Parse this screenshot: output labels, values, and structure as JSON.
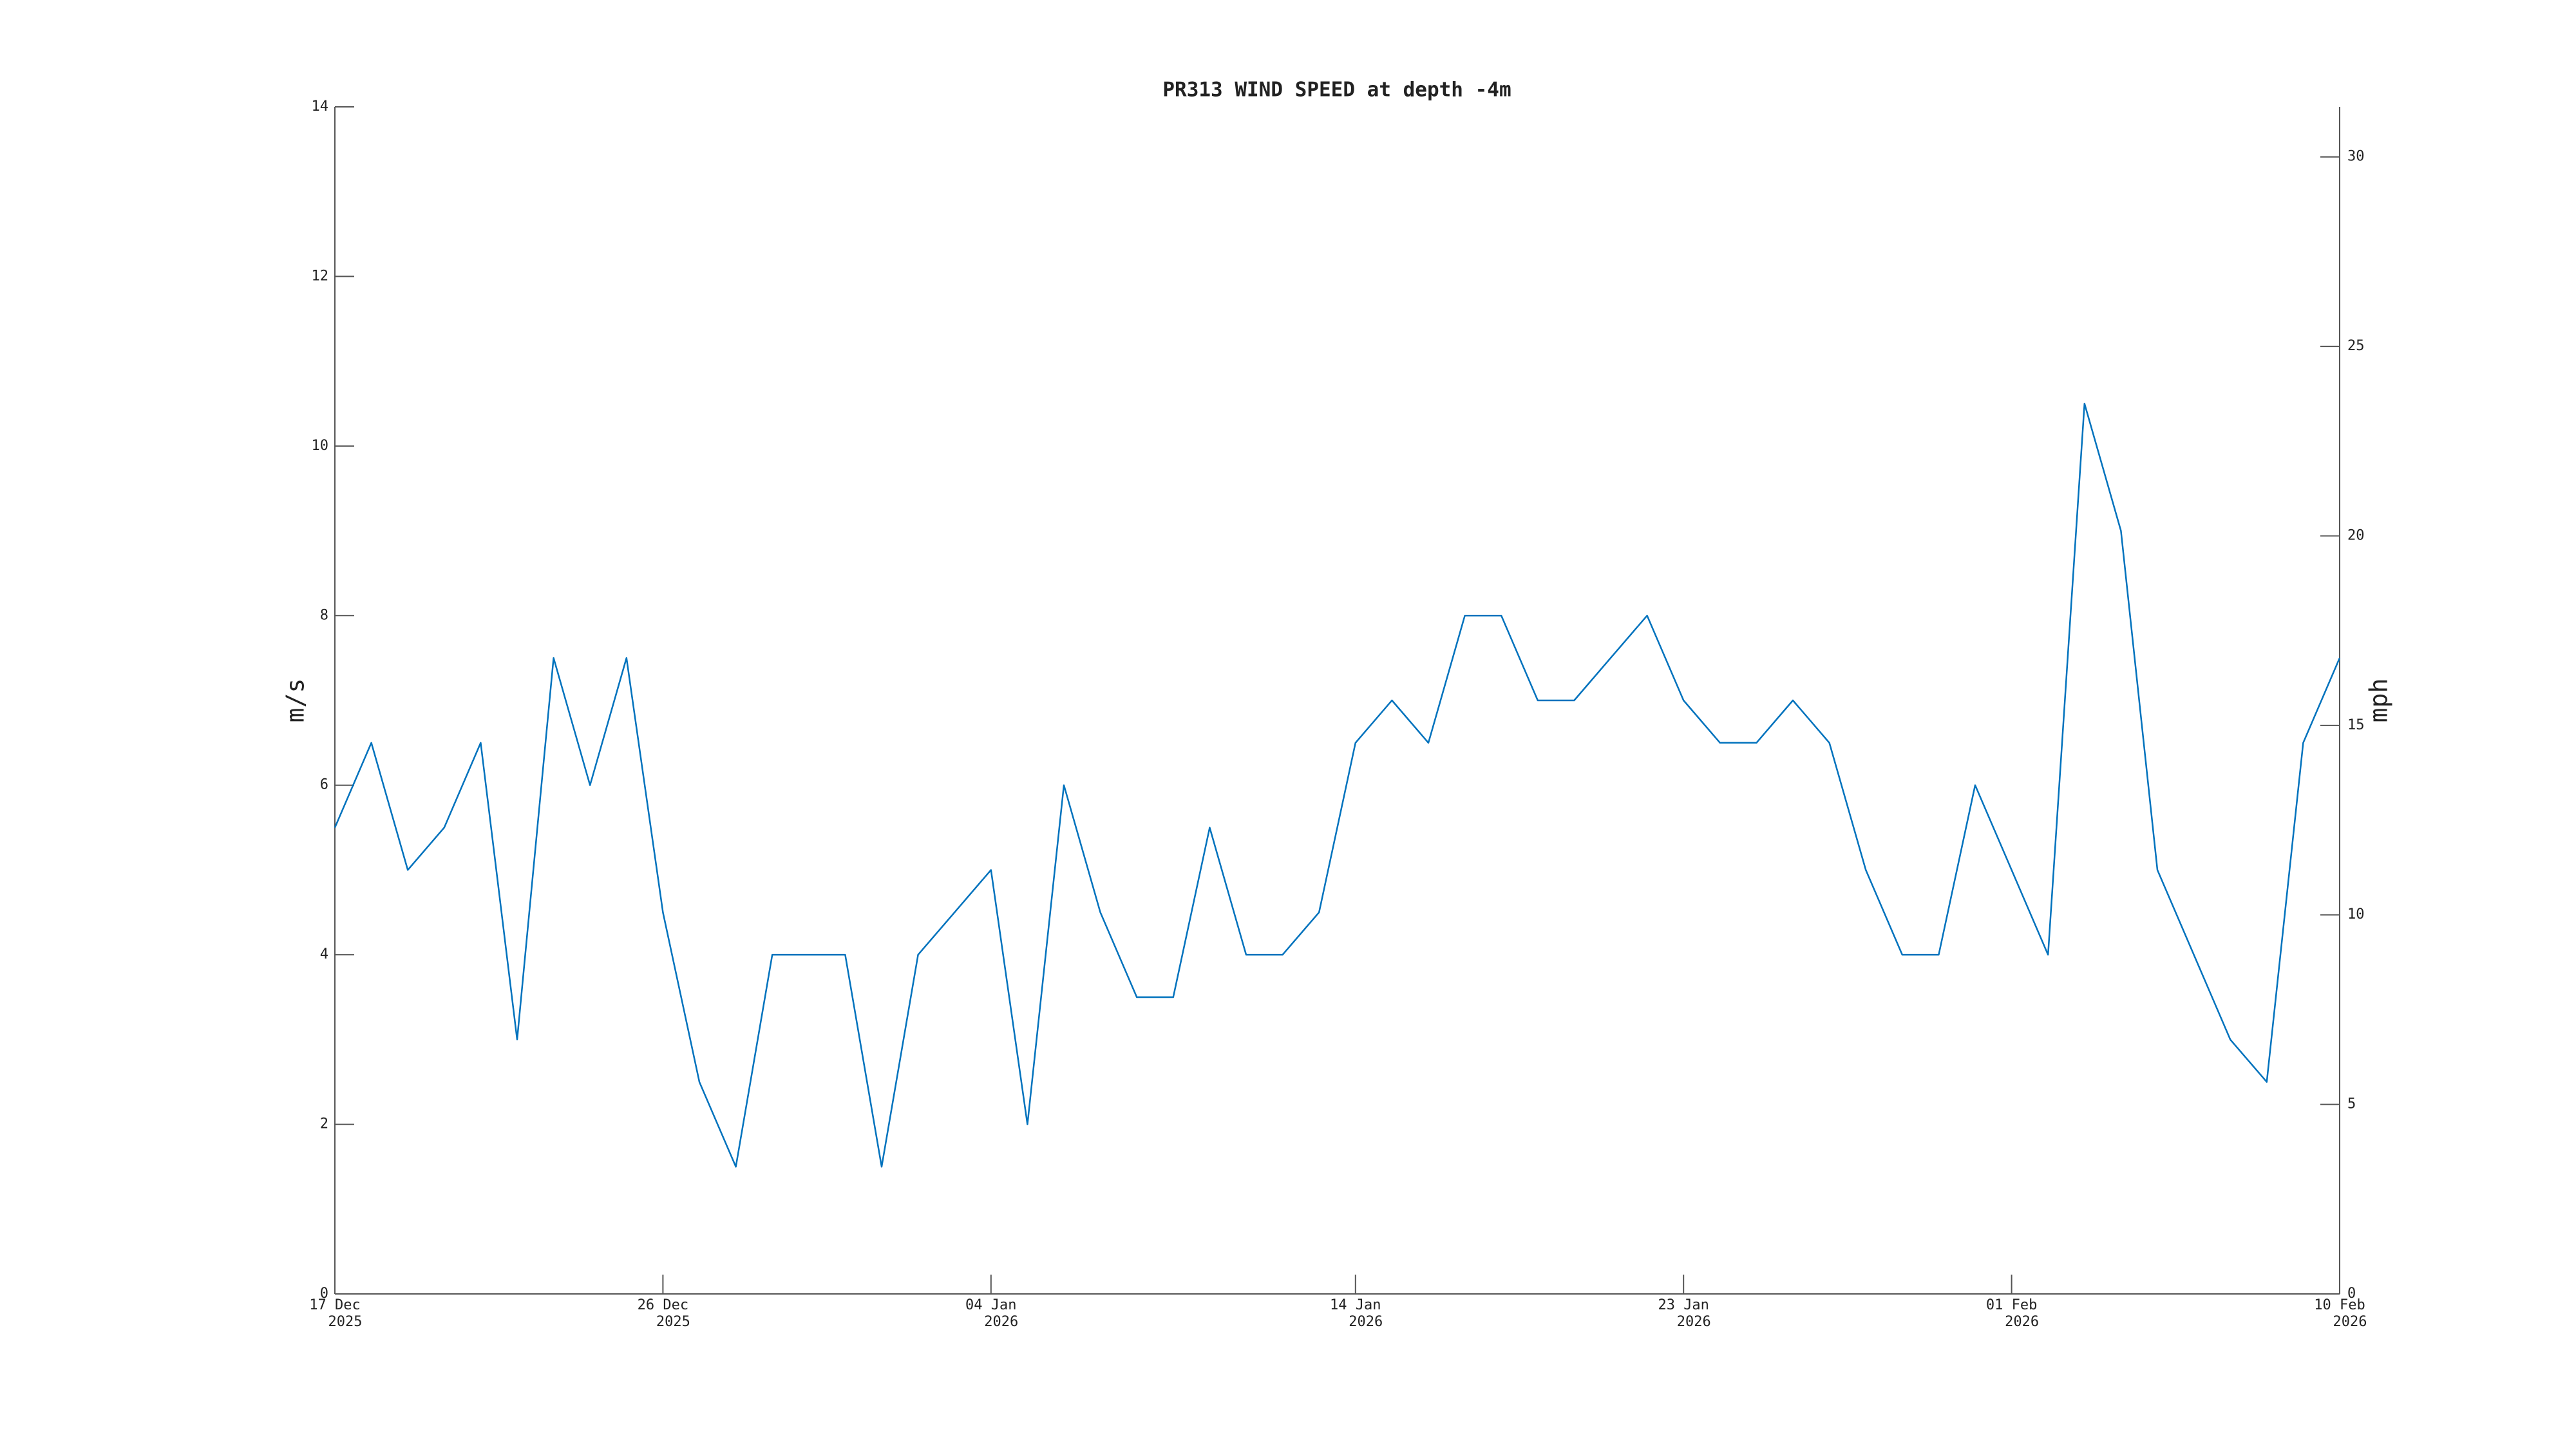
{
  "chart_data": {
    "type": "line",
    "title": "PR313 WIND SPEED at depth -4m",
    "y_label": "m/s",
    "y2_label": "mph",
    "x": [
      "2025-12-17",
      "2025-12-18",
      "2025-12-19",
      "2025-12-20",
      "2025-12-21",
      "2025-12-22",
      "2025-12-23",
      "2025-12-24",
      "2025-12-25",
      "2025-12-26",
      "2025-12-27",
      "2025-12-28",
      "2025-12-29",
      "2025-12-30",
      "2025-12-31",
      "2026-01-01",
      "2026-01-02",
      "2026-01-03",
      "2026-01-04",
      "2026-01-05",
      "2026-01-06",
      "2026-01-07",
      "2026-01-08",
      "2026-01-09",
      "2026-01-10",
      "2026-01-11",
      "2026-01-12",
      "2026-01-13",
      "2026-01-14",
      "2026-01-15",
      "2026-01-16",
      "2026-01-17",
      "2026-01-18",
      "2026-01-19",
      "2026-01-20",
      "2026-01-21",
      "2026-01-22",
      "2026-01-23",
      "2026-01-24",
      "2026-01-25",
      "2026-01-26",
      "2026-01-27",
      "2026-01-28",
      "2026-01-29",
      "2026-01-30",
      "2026-01-31",
      "2026-02-01",
      "2026-02-02",
      "2026-02-03",
      "2026-02-04",
      "2026-02-05",
      "2026-02-06",
      "2026-02-07",
      "2026-02-08",
      "2026-02-09",
      "2026-02-10"
    ],
    "series": [
      {
        "name": "wind speed",
        "color": "#0072bd",
        "values": [
          5.5,
          6.5,
          5,
          5.5,
          6.5,
          3,
          7.5,
          6,
          7.5,
          4.5,
          2.5,
          1.5,
          4,
          4,
          4,
          1.5,
          4,
          4.5,
          5,
          2,
          6,
          4.5,
          3.5,
          3.5,
          5.5,
          4,
          4,
          4.5,
          6.5,
          7,
          6.5,
          8,
          8,
          7,
          7,
          7.5,
          8,
          7,
          6.5,
          6.5,
          7,
          6.5,
          5,
          4,
          4,
          6,
          5,
          4,
          10.5,
          9,
          5,
          4,
          3,
          2.5,
          6.5,
          7.5
        ]
      }
    ],
    "xlim": [
      "2025-12-17",
      "2026-02-10"
    ],
    "xticks": [
      {
        "value": "2025-12-17",
        "label": "17 Dec",
        "year": "2025"
      },
      {
        "value": "2025-12-26",
        "label": "26 Dec",
        "year": "2025"
      },
      {
        "value": "2026-01-04",
        "label": "04 Jan",
        "year": "2026"
      },
      {
        "value": "2026-01-14",
        "label": "14 Jan",
        "year": "2026"
      },
      {
        "value": "2026-01-23",
        "label": "23 Jan",
        "year": "2026"
      },
      {
        "value": "2026-02-01",
        "label": "01 Feb",
        "year": "2026"
      },
      {
        "value": "2026-02-10",
        "label": "10 Feb",
        "year": "2026"
      }
    ],
    "ylim": [
      0,
      14
    ],
    "yticks": [
      0,
      2,
      4,
      6,
      8,
      10,
      12,
      14
    ],
    "y2lim": [
      0,
      31.32
    ],
    "y2ticks": [
      0,
      5,
      10,
      15,
      20,
      25,
      30
    ],
    "grid": false
  }
}
